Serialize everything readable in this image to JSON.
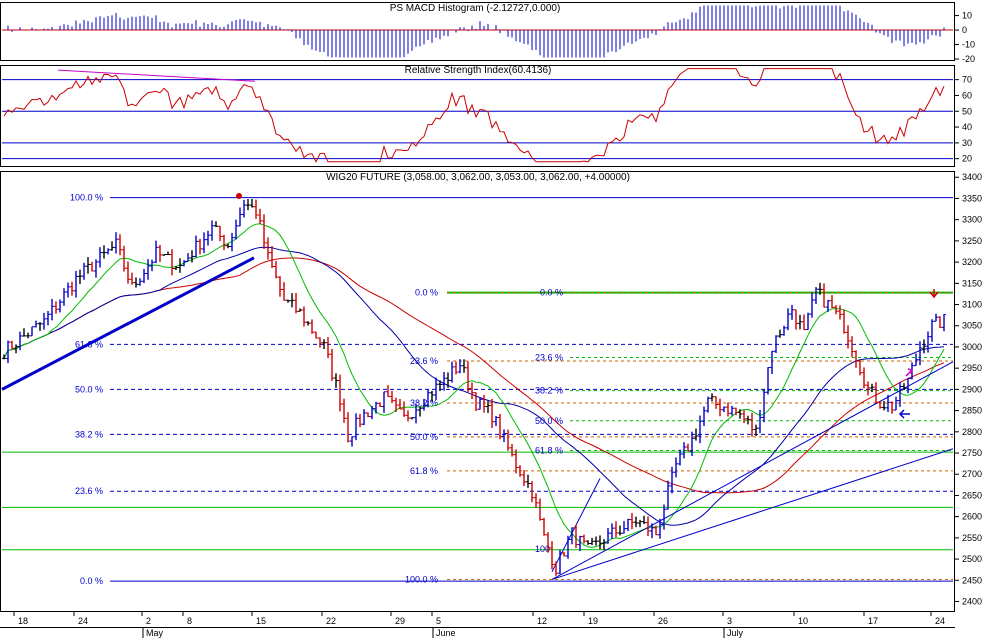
{
  "colors": {
    "background": "#ffffff",
    "panel_border": "#000000",
    "grid_blue": "#0000cc",
    "macd_positive": "#0000cc",
    "macd_negative": "#0000cc",
    "macd_line": "#cc0000",
    "rsi_line": "#cc0000",
    "rsi_trend": "#cc00cc",
    "bull_bars": "#0000cc",
    "bear_bars": "#cc0000",
    "neutral_bars": "#000000",
    "ma_fast": "#00bb00",
    "ma_mid": "#0000aa",
    "ma_slow": "#cc0000",
    "horizontal_green": "#00bb00",
    "fib_orange": "#cc6600",
    "trendline_blue": "#0000cc"
  },
  "chart_data": [
    {
      "id": "macd",
      "type": "bar",
      "title": "PS MACD Histogram (-2.12727,0.000)",
      "ylim": [
        -20,
        18
      ],
      "yticks": [
        "10",
        "0",
        "-10",
        "-20"
      ],
      "ytick_values": [
        10,
        0,
        -10,
        -20
      ],
      "grid": false
    },
    {
      "id": "rsi",
      "type": "line",
      "title": "Relative Strength Index(60.4136)",
      "ylim": [
        16,
        78
      ],
      "yticks": [
        "70",
        "60",
        "50",
        "40",
        "30",
        "20"
      ],
      "ytick_values": [
        70,
        60,
        50,
        40,
        30,
        20
      ],
      "guide_levels": [
        20,
        30,
        50,
        70
      ],
      "grid": false
    },
    {
      "id": "price",
      "type": "line",
      "title": "WIG20 FUTURE (3,058.00, 3,062.00, 3,053.00, 3,062.00, +4.00000)",
      "ylim": [
        2380,
        3410
      ],
      "yticks": [
        "3400",
        "3350",
        "3300",
        "3250",
        "3200",
        "3150",
        "3100",
        "3050",
        "3000",
        "2950",
        "2900",
        "2850",
        "2800",
        "2750",
        "2700",
        "2650",
        "2600",
        "2550",
        "2500",
        "2450",
        "2400"
      ],
      "ytick_values": [
        3400,
        3350,
        3300,
        3250,
        3200,
        3150,
        3100,
        3050,
        3000,
        2950,
        2900,
        2850,
        2800,
        2750,
        2700,
        2650,
        2600,
        2550,
        2500,
        2450,
        2400
      ],
      "x_day_labels": [
        "18",
        "24",
        "2",
        "8",
        "15",
        "22",
        "29",
        "5",
        "12",
        "19",
        "26",
        "3",
        "10",
        "17",
        "24"
      ],
      "x_month_labels": [
        "May",
        "June",
        "July"
      ],
      "fib_left": [
        {
          "label": "100.0 %",
          "value": 3352
        },
        {
          "label": "61.8 %",
          "value": 3006
        },
        {
          "label": "50.0 %",
          "value": 2900
        },
        {
          "label": "38.2 %",
          "value": 2794
        },
        {
          "label": "23.6 %",
          "value": 2660
        },
        {
          "label": "0.0 %",
          "value": 2448
        }
      ],
      "fib_mid": [
        {
          "label": "0.0 %",
          "value": 3128
        },
        {
          "label": "23.6 %",
          "value": 2967
        },
        {
          "label": "38.2 %",
          "value": 2868
        },
        {
          "label": "50.0 %",
          "value": 2788
        },
        {
          "label": "61.8 %",
          "value": 2708
        },
        {
          "label": "100.0 %",
          "value": 2452
        }
      ],
      "fib_right": [
        {
          "label": "0.0 %",
          "value": 3128
        },
        {
          "label": "23.6 %",
          "value": 2975
        },
        {
          "label": "38.2 %",
          "value": 2897
        },
        {
          "label": "50.0 %",
          "value": 2826
        },
        {
          "label": "61.8 %",
          "value": 2756
        }
      ],
      "small_labels": [
        {
          "label": "100",
          "value": 2524
        }
      ],
      "green_levels": [
        3128,
        2752,
        2622,
        2522
      ],
      "series": [
        {
          "name": "",
          "color_key": "ma_fast"
        },
        {
          "name": "",
          "color_key": "ma_mid"
        },
        {
          "name": "",
          "color_key": "ma_slow"
        }
      ]
    }
  ]
}
